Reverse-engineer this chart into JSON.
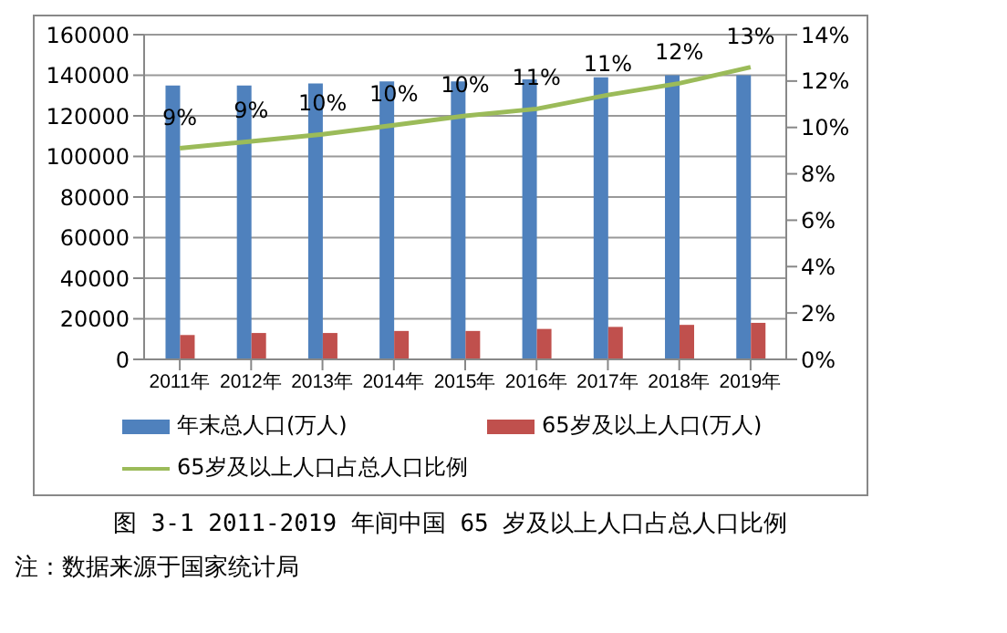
{
  "chart_data": {
    "type": "bar",
    "title": "图 3-1 2011-2019 年间中国 65 岁及以上人口占总人口比例",
    "annotations": [
      "注：数据来源于国家统计局"
    ],
    "categories": [
      "2011年",
      "2012年",
      "2013年",
      "2014年",
      "2015年",
      "2016年",
      "2017年",
      "2018年",
      "2019年"
    ],
    "series": [
      {
        "name": "年末总人口(万人)",
        "color": "#4f81bd",
        "values": [
          135000,
          135000,
          136000,
          137000,
          137000,
          138000,
          139000,
          140000,
          140000
        ]
      },
      {
        "name": "65岁及以上人口(万人)",
        "color": "#c0504d",
        "values": [
          12000,
          13000,
          13000,
          14000,
          14000,
          15000,
          16000,
          17000,
          18000
        ]
      },
      {
        "name": "65岁及以上人口占总人口比例",
        "type": "line",
        "axis": "y2",
        "color": "#9bbb59",
        "values": [
          9.1,
          9.4,
          9.7,
          10.1,
          10.5,
          10.8,
          11.4,
          11.9,
          12.6
        ],
        "value_labels": [
          "9%",
          "9%",
          "10%",
          "10%",
          "10%",
          "11%",
          "11%",
          "12%",
          "13%"
        ],
        "marker": "none"
      }
    ],
    "ylim": [
      0,
      160000
    ],
    "yticks": [
      0,
      20000,
      40000,
      60000,
      80000,
      100000,
      120000,
      140000,
      160000
    ],
    "y2lim": [
      0,
      14
    ],
    "y2ticks": [
      {
        "value": 0,
        "label": "0%"
      },
      {
        "value": 2,
        "label": "2%"
      },
      {
        "value": 4,
        "label": "4%"
      },
      {
        "value": 6,
        "label": "6%"
      },
      {
        "value": 8,
        "label": "8%"
      },
      {
        "value": 10,
        "label": "10%"
      },
      {
        "value": 12,
        "label": "12%"
      },
      {
        "value": 14,
        "label": "14%"
      }
    ],
    "grid": "y",
    "legend": "bottom"
  }
}
